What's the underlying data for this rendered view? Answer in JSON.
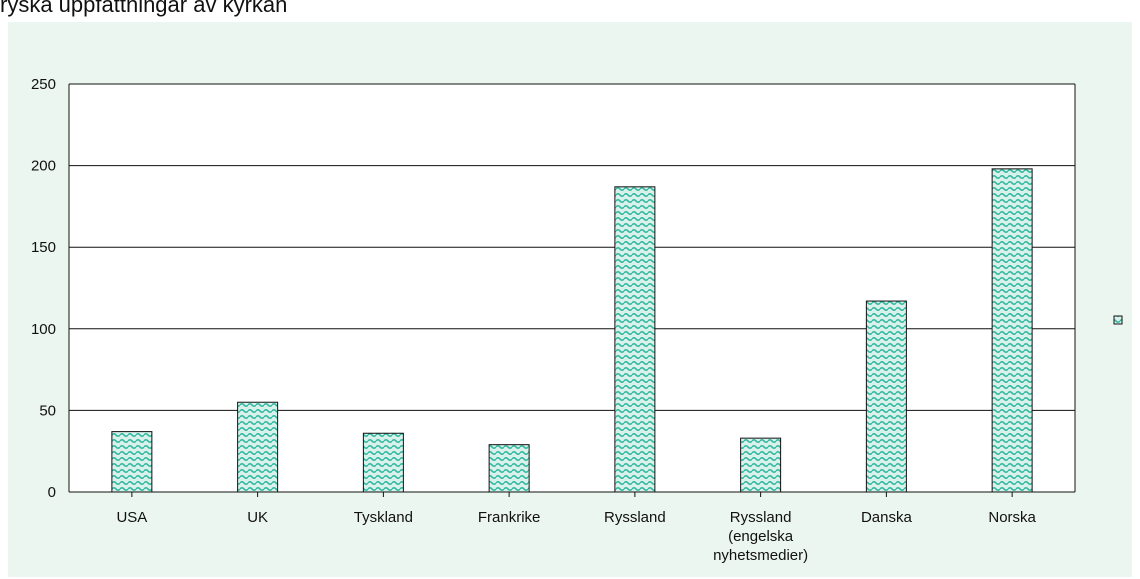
{
  "heading": "ryska uppfattningar av kyrkan",
  "colors": {
    "panel_background": "#ecf6f0",
    "plot_background": "#ffffff",
    "bar_fill": "#2fb69e",
    "bar_background": "#d8f1ea",
    "bar_border": "#111111",
    "gridline": "#111111"
  },
  "chart_data": {
    "type": "bar",
    "categories": [
      "USA",
      "UK",
      "Tyskland",
      "Frankrike",
      "Ryssland",
      "Ryssland (engelska nyhetsmedier)",
      "Danska",
      "Norska"
    ],
    "category_label_lines": [
      [
        "USA"
      ],
      [
        "UK"
      ],
      [
        "Tyskland"
      ],
      [
        "Frankrike"
      ],
      [
        "Ryssland"
      ],
      [
        "Ryssland",
        "(engelska",
        "nyhetsmedier)"
      ],
      [
        "Danska"
      ],
      [
        "Norska"
      ]
    ],
    "values": [
      37,
      55,
      36,
      29,
      187,
      33,
      117,
      198
    ],
    "title": "",
    "xlabel": "",
    "ylabel": "",
    "ylim": [
      0,
      250
    ],
    "yticks": [
      0,
      50,
      100,
      150,
      200,
      250
    ],
    "grid": true,
    "legend": "right",
    "legend_entries": [
      ""
    ]
  }
}
